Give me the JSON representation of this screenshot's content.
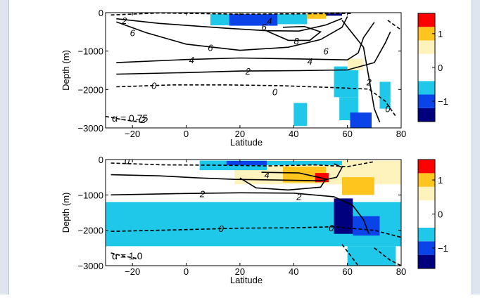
{
  "chart_data": [
    {
      "type": "heatmap",
      "xlabel": "Latitude",
      "ylabel": "Depth (m)",
      "xlim": [
        -30,
        80
      ],
      "ylim": [
        -3000,
        0
      ],
      "xticks": [
        -20,
        0,
        20,
        40,
        60,
        80
      ],
      "xtick_labels": [
        "−20",
        "0",
        "20",
        "40",
        "60",
        "80"
      ],
      "yticks": [
        0,
        -1000,
        -2000,
        -3000
      ],
      "ytick_labels": [
        "0",
        "−1000",
        "−2000",
        "−3000"
      ],
      "annotation": "α = 0.75",
      "colorbar": {
        "levels": [
          -1.6,
          -1.2,
          -0.8,
          -0.4,
          0,
          0.4,
          0.8,
          1.2,
          1.6
        ],
        "colors": [
          "#00007f",
          "#0a43e8",
          "#1fc8e8",
          "#ffffff",
          "#ffffff",
          "#fff3bd",
          "#ffc51f",
          "#ff0000"
        ],
        "ticks": [
          -1,
          0,
          1
        ],
        "tick_labels": [
          "−1",
          "0",
          "1"
        ]
      },
      "cells": [
        {
          "lat": [
            9,
            16
          ],
          "depth": [
            -40,
            -330
          ],
          "value": -0.6
        },
        {
          "lat": [
            16,
            34
          ],
          "depth": [
            -40,
            -340
          ],
          "value": -0.9
        },
        {
          "lat": [
            34,
            45
          ],
          "depth": [
            -40,
            -300
          ],
          "value": -0.8
        },
        {
          "lat": [
            45,
            52
          ],
          "depth": [
            -20,
            -160
          ],
          "value": 0.9
        },
        {
          "lat": [
            52,
            58
          ],
          "depth": [
            -20,
            -80
          ],
          "value": -1.3
        },
        {
          "lat": [
            55,
            64
          ],
          "depth": [
            -1400,
            -2200
          ],
          "value": -0.7
        },
        {
          "lat": [
            57,
            64
          ],
          "depth": [
            -2200,
            -2800
          ],
          "value": -0.8
        },
        {
          "lat": [
            61,
            69
          ],
          "depth": [
            -2600,
            -3000
          ],
          "value": -0.9
        },
        {
          "lat": [
            72,
            76
          ],
          "depth": [
            -1800,
            -2500
          ],
          "value": -0.7
        },
        {
          "lat": [
            40,
            45
          ],
          "depth": [
            -2350,
            -2950
          ],
          "value": -0.7
        },
        {
          "lat": [
            60,
            66
          ],
          "depth": [
            -1200,
            -1500
          ],
          "value": 0.5
        }
      ],
      "contours": [
        {
          "level": -2,
          "label": "−2",
          "dashed": true,
          "points": [
            [
              -28,
              -60
            ],
            [
              -10,
              -10
            ],
            [
              20,
              -40
            ],
            [
              45,
              -30
            ],
            [
              62,
              -20
            ]
          ]
        },
        {
          "level": 6,
          "label": "6",
          "dashed": false,
          "points": [
            [
              -26,
              -240
            ],
            [
              -15,
              -520
            ],
            [
              0,
              -820
            ],
            [
              20,
              -980
            ],
            [
              38,
              -900
            ],
            [
              50,
              -700
            ],
            [
              58,
              -380
            ],
            [
              60,
              -100
            ]
          ]
        },
        {
          "level": 6,
          "label": "6",
          "dashed": false,
          "points": [
            [
              -26,
              -160
            ],
            [
              -10,
              -280
            ],
            [
              14,
              -400
            ],
            [
              30,
              -470
            ],
            [
              42,
              -480
            ],
            [
              52,
              -320
            ],
            [
              58,
              -150
            ]
          ]
        },
        {
          "level": 8,
          "label": "8",
          "dashed": false,
          "points": [
            [
              30,
              -480
            ],
            [
              38,
              -720
            ],
            [
              46,
              -720
            ],
            [
              50,
              -500
            ],
            [
              44,
              -360
            ],
            [
              36,
              -380
            ]
          ]
        },
        {
          "level": 4,
          "label": "4",
          "dashed": false,
          "points": [
            [
              -26,
              -1300
            ],
            [
              0,
              -1220
            ],
            [
              20,
              -1180
            ],
            [
              45,
              -1210
            ],
            [
              60,
              -1230
            ],
            [
              64,
              -1050
            ],
            [
              66,
              -650
            ],
            [
              70,
              -250
            ]
          ]
        },
        {
          "level": 2,
          "label": "2",
          "dashed": false,
          "points": [
            [
              -26,
              -1600
            ],
            [
              0,
              -1560
            ],
            [
              20,
              -1520
            ],
            [
              42,
              -1510
            ],
            [
              60,
              -1490
            ],
            [
              70,
              -1300
            ],
            [
              74,
              -800
            ],
            [
              76,
              -500
            ]
          ]
        },
        {
          "level": 2,
          "label": "2",
          "dashed": false,
          "points": [
            [
              58,
              -200
            ],
            [
              66,
              -900
            ],
            [
              68,
              -1700
            ],
            [
              70,
              -2500
            ],
            [
              72,
              -2850
            ]
          ]
        },
        {
          "level": 0,
          "label": "0",
          "dashed": true,
          "points": [
            [
              -26,
              -1930
            ],
            [
              -5,
              -1880
            ],
            [
              15,
              -1880
            ],
            [
              35,
              -1900
            ],
            [
              55,
              -1950
            ],
            [
              68,
              -1990
            ],
            [
              74,
              -2300
            ],
            [
              78,
              -2700
            ]
          ]
        },
        {
          "level": 0,
          "label": "0",
          "dashed": true,
          "points": [
            [
              75,
              -200
            ],
            [
              80,
              -450
            ]
          ]
        },
        {
          "level": -2,
          "label": "−2",
          "dashed": true,
          "points": [
            [
              -30,
              -2700
            ],
            [
              -24,
              -2780
            ],
            [
              -16,
              -2860
            ]
          ]
        }
      ],
      "contour_labels": [
        {
          "text": "2",
          "lat": -23,
          "depth": -200
        },
        {
          "text": "6",
          "lat": -20,
          "depth": -520
        },
        {
          "text": "6",
          "lat": 9,
          "depth": -910
        },
        {
          "text": "6",
          "lat": 29,
          "depth": -370
        },
        {
          "text": "4",
          "lat": 31,
          "depth": -210
        },
        {
          "text": "8",
          "lat": 41,
          "depth": -730
        },
        {
          "text": "6",
          "lat": 52,
          "depth": -1000
        },
        {
          "text": "4",
          "lat": 2,
          "depth": -1230
        },
        {
          "text": "4",
          "lat": 46,
          "depth": -1260
        },
        {
          "text": "2",
          "lat": 23,
          "depth": -1520
        },
        {
          "text": "2",
          "lat": 68,
          "depth": -1800
        },
        {
          "text": "0",
          "lat": -12,
          "depth": -1890
        },
        {
          "text": "0",
          "lat": 33,
          "depth": -2060
        },
        {
          "text": "0",
          "lat": 75,
          "depth": -2500
        },
        {
          "text": "−2",
          "lat": -17,
          "depth": -2780
        }
      ]
    },
    {
      "type": "heatmap",
      "xlabel": "Latitude",
      "ylabel": "Depth (m)",
      "xlim": [
        -30,
        80
      ],
      "ylim": [
        -3000,
        0
      ],
      "xticks": [
        -20,
        0,
        20,
        40,
        60,
        80
      ],
      "xtick_labels": [
        "−20",
        "0",
        "20",
        "40",
        "60",
        "80"
      ],
      "yticks": [
        0,
        -1000,
        -2000,
        -3000
      ],
      "ytick_labels": [
        "0",
        "−1000",
        "−2000",
        "−3000"
      ],
      "annotation": "α = 1.0",
      "colorbar": {
        "levels": [
          -1.6,
          -1.2,
          -0.8,
          -0.4,
          0,
          0.4,
          0.8,
          1.2,
          1.6
        ],
        "colors": [
          "#00007f",
          "#0a43e8",
          "#1fc8e8",
          "#ffffff",
          "#ffffff",
          "#fff3bd",
          "#ffc51f",
          "#ff0000"
        ],
        "ticks": [
          -1,
          0,
          1
        ],
        "tick_labels": [
          "−1",
          "0",
          "1"
        ]
      },
      "cells": [
        {
          "lat": [
            -30,
            80
          ],
          "depth": [
            -1200,
            -2450
          ],
          "value": -0.6
        },
        {
          "lat": [
            18,
            80
          ],
          "depth": [
            -30,
            -700
          ],
          "value": 0.4
        },
        {
          "lat": [
            5,
            30
          ],
          "depth": [
            -30,
            -300
          ],
          "value": -0.5
        },
        {
          "lat": [
            36,
            52
          ],
          "depth": [
            -200,
            -650
          ],
          "value": 0.9
        },
        {
          "lat": [
            48,
            53
          ],
          "depth": [
            -380,
            -640
          ],
          "value": 1.4
        },
        {
          "lat": [
            62,
            67
          ],
          "depth": [
            -700,
            -960
          ],
          "value": 1.4
        },
        {
          "lat": [
            58,
            70
          ],
          "depth": [
            -500,
            -1000
          ],
          "value": 0.9
        },
        {
          "lat": [
            55,
            62
          ],
          "depth": [
            -1100,
            -2100
          ],
          "value": -1.3
        },
        {
          "lat": [
            62,
            72
          ],
          "depth": [
            -1600,
            -2150
          ],
          "value": -1.2
        },
        {
          "lat": [
            60,
            78
          ],
          "depth": [
            -2450,
            -3000
          ],
          "value": -0.6
        },
        {
          "lat": [
            15,
            30
          ],
          "depth": [
            -40,
            -160
          ],
          "value": -1.2
        },
        {
          "lat": [
            30,
            58
          ],
          "depth": [
            -40,
            -160
          ],
          "value": -0.6
        }
      ],
      "contours": [
        {
          "level": 0,
          "label": "0",
          "dashed": true,
          "points": [
            [
              -28,
              -100
            ],
            [
              -8,
              -150
            ],
            [
              14,
              -160
            ],
            [
              30,
              -180
            ],
            [
              48,
              -150
            ],
            [
              60,
              -200
            ],
            [
              70,
              -60
            ]
          ]
        },
        {
          "level": 2,
          "label": "2",
          "dashed": false,
          "points": [
            [
              -28,
              -430
            ],
            [
              -10,
              -460
            ],
            [
              5,
              -520
            ],
            [
              18,
              -560
            ],
            [
              35,
              -580
            ],
            [
              50,
              -600
            ],
            [
              56,
              -500
            ],
            [
              58,
              -220
            ],
            [
              55,
              -120
            ]
          ]
        },
        {
          "level": 2,
          "label": "2",
          "dashed": false,
          "points": [
            [
              -28,
              -1000
            ],
            [
              0,
              -960
            ],
            [
              20,
              -940
            ],
            [
              40,
              -950
            ],
            [
              55,
              -1050
            ],
            [
              62,
              -1300
            ],
            [
              66,
              -1700
            ],
            [
              68,
              -2100
            ]
          ]
        },
        {
          "level": 4,
          "label": "4",
          "dashed": false,
          "points": [
            [
              20,
              -520
            ],
            [
              26,
              -800
            ],
            [
              38,
              -860
            ],
            [
              50,
              -780
            ],
            [
              52,
              -550
            ],
            [
              42,
              -380
            ],
            [
              28,
              -360
            ]
          ]
        },
        {
          "level": 0,
          "label": "0",
          "dashed": true,
          "points": [
            [
              -28,
              -2030
            ],
            [
              0,
              -1980
            ],
            [
              20,
              -1940
            ],
            [
              40,
              -1930
            ],
            [
              55,
              -1900
            ],
            [
              62,
              -1950
            ],
            [
              70,
              -2000
            ],
            [
              80,
              -2200
            ]
          ]
        },
        {
          "level": 0,
          "label": "0",
          "dashed": true,
          "points": [
            [
              58,
              -2400
            ],
            [
              62,
              -2800
            ],
            [
              64,
              -3000
            ]
          ]
        },
        {
          "level": 0,
          "label": "0",
          "dashed": true,
          "points": [
            [
              70,
              -2500
            ],
            [
              76,
              -2850
            ],
            [
              80,
              -3000
            ]
          ]
        },
        {
          "level": -2,
          "label": "−2",
          "dashed": true,
          "points": [
            [
              -28,
              -2640
            ],
            [
              -24,
              -2720
            ],
            [
              -18,
              -2800
            ]
          ]
        }
      ],
      "contour_labels": [
        {
          "text": "0",
          "lat": -22,
          "depth": -30
        },
        {
          "text": "4",
          "lat": 30,
          "depth": -430
        },
        {
          "text": "2",
          "lat": 6,
          "depth": -960
        },
        {
          "text": "2",
          "lat": 42,
          "depth": -1040
        },
        {
          "text": "0",
          "lat": 13,
          "depth": -1950
        },
        {
          "text": "0",
          "lat": 54,
          "depth": -1930
        }
      ]
    }
  ]
}
